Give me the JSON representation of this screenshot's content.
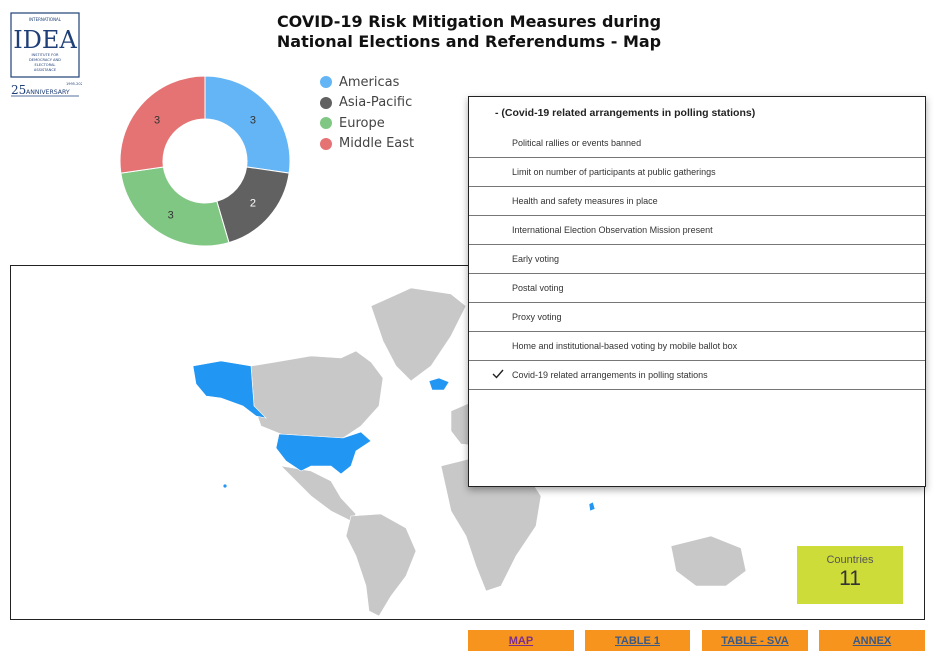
{
  "header": {
    "logo": {
      "org_text": "INTERNATIONAL IDEA INSTITUTE FOR DEMOCRACY AND ELECTORAL ASSISTANCE",
      "anniversary_text": "25 ANNIVERSARY",
      "years_text": "1995-2020"
    },
    "title_line1": "COVID-19 Risk Mitigation Measures during",
    "title_line2": "National Elections and Referendums - Map"
  },
  "chart_data": {
    "type": "pie",
    "categories": [
      "Americas",
      "Asia-Pacific",
      "Europe",
      "Middle East"
    ],
    "values": [
      3,
      2,
      3,
      3
    ],
    "colors": [
      "#64b5f6",
      "#616161",
      "#81c784",
      "#e57373"
    ],
    "donut": true,
    "legend": "right"
  },
  "filter_dropdown": {
    "header": "- (Covid-19 related arrangements in polling stations)",
    "options": [
      {
        "label": "Political rallies or events banned",
        "checked": false
      },
      {
        "label": "Limit on number of participants at public gatherings",
        "checked": false
      },
      {
        "label": "Health and safety measures in place",
        "checked": false
      },
      {
        "label": "International Election Observation Mission present",
        "checked": false
      },
      {
        "label": "Early voting",
        "checked": false
      },
      {
        "label": "Postal voting",
        "checked": false
      },
      {
        "label": "Proxy voting",
        "checked": false
      },
      {
        "label": "Home and institutional-based voting by mobile ballot box",
        "checked": false
      },
      {
        "label": "Covid-19 related arrangements in polling stations",
        "checked": true
      }
    ]
  },
  "map": {
    "highlight_color": "#2196f3",
    "base_color": "#c8c8c8",
    "highlighted_regions": [
      "United States",
      "Iceland",
      "Sri Lanka"
    ]
  },
  "scorecard": {
    "label": "Countries",
    "value": "11"
  },
  "nav": {
    "map": "MAP",
    "table1": "TABLE 1",
    "table_sva": "TABLE - SVA",
    "annex": "ANNEX"
  }
}
